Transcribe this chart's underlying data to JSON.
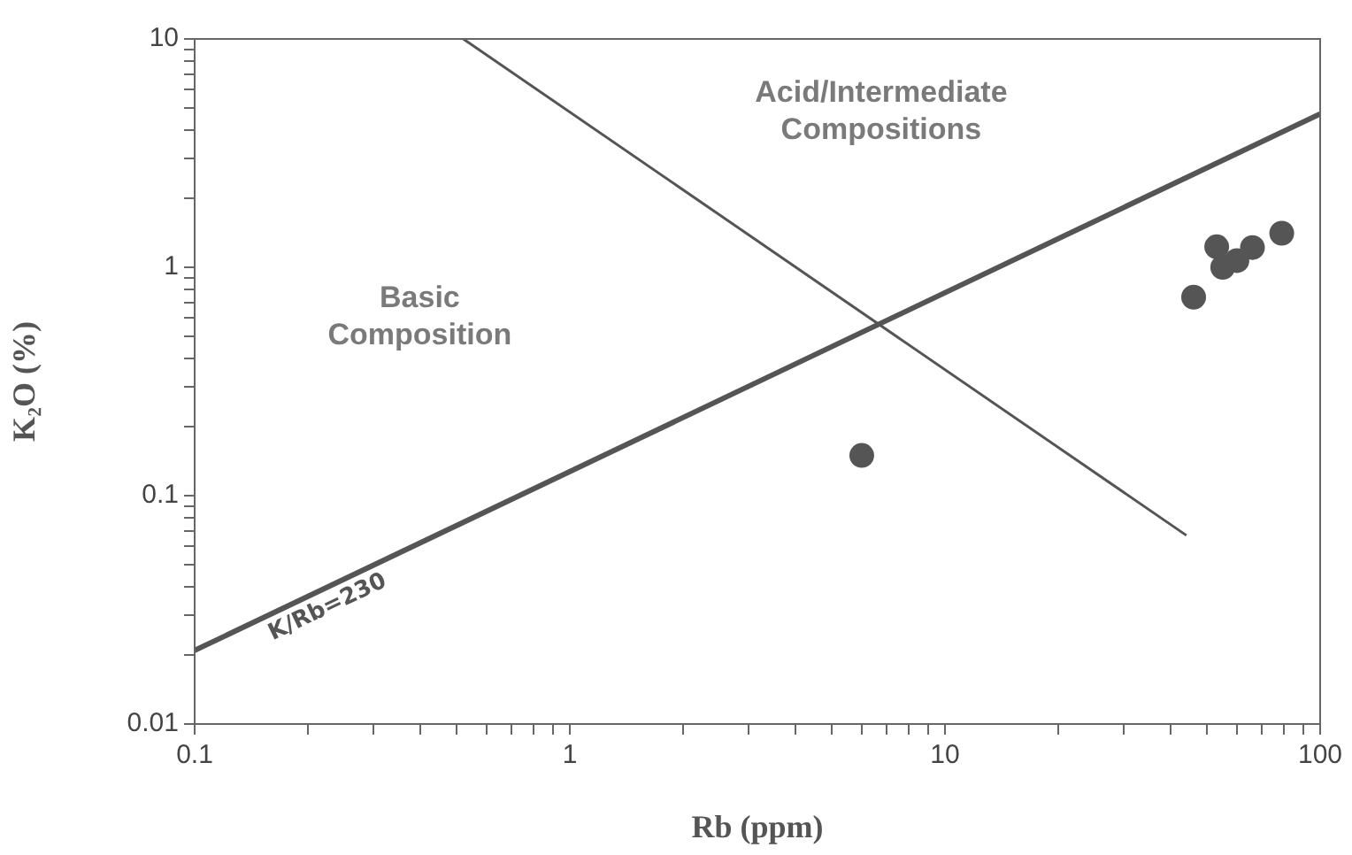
{
  "chart_data": {
    "type": "scatter",
    "xlabel": "Rb (ppm)",
    "ylabel": "K₂O (%)",
    "log": "xy",
    "grid": false,
    "marker": "circle",
    "xlim": [
      0.1,
      100
    ],
    "ylim": [
      0.01,
      10
    ],
    "xticks": [
      0.1,
      {
        "value": 0.2,
        "label": null
      },
      {
        "value": 0.3,
        "label": null
      },
      {
        "value": 0.4,
        "label": null
      },
      {
        "value": 0.5,
        "label": null
      },
      {
        "value": 0.6,
        "label": null
      },
      {
        "value": 0.7,
        "label": null
      },
      {
        "value": 0.8,
        "label": null
      },
      {
        "value": 0.9,
        "label": null
      },
      1,
      {
        "value": 2,
        "label": null
      },
      {
        "value": 3,
        "label": null
      },
      {
        "value": 4,
        "label": null
      },
      {
        "value": 5,
        "label": null
      },
      {
        "value": 6,
        "label": null
      },
      {
        "value": 7,
        "label": null
      },
      {
        "value": 8,
        "label": null
      },
      {
        "value": 9,
        "label": null
      },
      10,
      {
        "value": 20,
        "label": null
      },
      {
        "value": 30,
        "label": null
      },
      {
        "value": 40,
        "label": null
      },
      {
        "value": 50,
        "label": null
      },
      {
        "value": 60,
        "label": null
      },
      {
        "value": 70,
        "label": null
      },
      {
        "value": 80,
        "label": null
      },
      {
        "value": 90,
        "label": null
      },
      100
    ],
    "yticks": [
      0.01,
      {
        "value": 0.02,
        "label": null
      },
      {
        "value": 0.03,
        "label": null
      },
      {
        "value": 0.04,
        "label": null
      },
      {
        "value": 0.05,
        "label": null
      },
      {
        "value": 0.06,
        "label": null
      },
      {
        "value": 0.07,
        "label": null
      },
      {
        "value": 0.08,
        "label": null
      },
      {
        "value": 0.09,
        "label": null
      },
      0.1,
      {
        "value": 0.2,
        "label": null
      },
      {
        "value": 0.3,
        "label": null
      },
      {
        "value": 0.4,
        "label": null
      },
      {
        "value": 0.5,
        "label": null
      },
      {
        "value": 0.6,
        "label": null
      },
      {
        "value": 0.7,
        "label": null
      },
      {
        "value": 0.8,
        "label": null
      },
      {
        "value": 0.9,
        "label": null
      },
      1,
      {
        "value": 2,
        "label": null
      },
      {
        "value": 3,
        "label": null
      },
      {
        "value": 4,
        "label": null
      },
      {
        "value": 5,
        "label": null
      },
      {
        "value": 6,
        "label": null
      },
      {
        "value": 7,
        "label": null
      },
      {
        "value": 8,
        "label": null
      },
      {
        "value": 9,
        "label": null
      },
      10
    ],
    "annotations": [
      "Basic\nComposition",
      "Acid/Intermediate\nCompositions"
    ],
    "series": [
      {
        "color": "#555555",
        "x": [
          6.0,
          46,
          53,
          55,
          60,
          66,
          79
        ],
        "values": [
          0.15,
          0.74,
          1.23,
          1.0,
          1.07,
          1.22,
          1.41
        ]
      },
      {
        "type": "line",
        "name": "K/Rb=230",
        "color": "#555555",
        "marker": "none",
        "x": [
          0.1,
          100
        ],
        "values": [
          0.021,
          4.7
        ]
      },
      {
        "type": "line",
        "color": "#555555",
        "marker": "none",
        "x": [
          0.52,
          44
        ],
        "values": [
          10,
          0.067
        ]
      }
    ]
  }
}
